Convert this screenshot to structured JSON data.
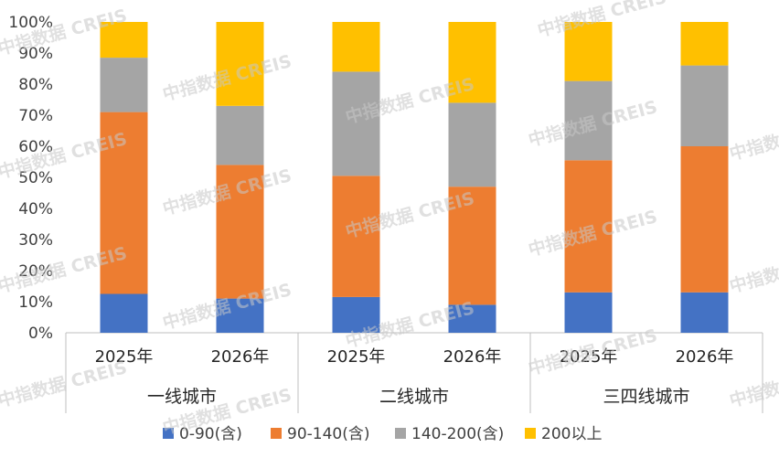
{
  "chart_data": {
    "type": "bar",
    "stacked": true,
    "percent": true,
    "groups": [
      "一线城市",
      "二线城市",
      "三四线城市"
    ],
    "categories": [
      "2025年",
      "2026年",
      "2025年",
      "2026年",
      "2025年",
      "2026年"
    ],
    "category_group_index": [
      0,
      0,
      1,
      1,
      2,
      2
    ],
    "series": [
      {
        "name": "0-90(含)",
        "color": "#4472c4",
        "values": [
          12.5,
          11,
          11.5,
          9,
          13,
          13
        ]
      },
      {
        "name": "90-140(含)",
        "color": "#ed7d31",
        "values": [
          58.5,
          43,
          39,
          38,
          42.5,
          47
        ]
      },
      {
        "name": "140-200(含)",
        "color": "#a5a5a5",
        "values": [
          17.5,
          19,
          33.5,
          27,
          25.5,
          26
        ]
      },
      {
        "name": "200以上",
        "color": "#ffc000",
        "values": [
          11.5,
          27,
          16,
          26,
          19,
          14
        ]
      }
    ],
    "y_ticks": [
      "0%",
      "10%",
      "20%",
      "30%",
      "40%",
      "50%",
      "60%",
      "70%",
      "80%",
      "90%",
      "100%"
    ],
    "ylim": [
      0,
      100
    ],
    "grid": false,
    "legend_position": "bottom",
    "watermark": "中指数据 CREIS"
  }
}
